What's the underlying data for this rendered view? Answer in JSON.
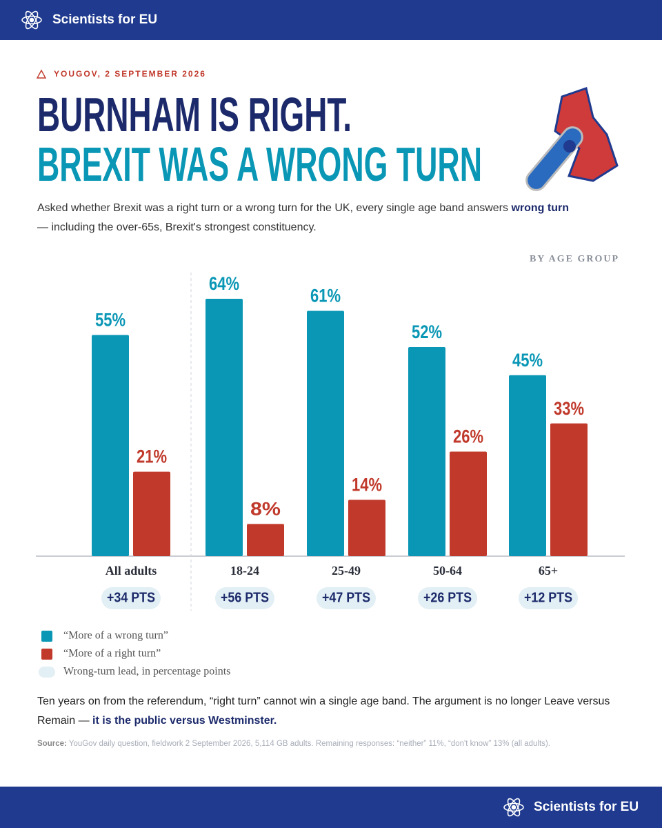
{
  "header": {
    "brand": "Scientists for EU"
  },
  "kicker": "YOUGOV, 2 SEPTEMBER 2026",
  "title_line1": "BURNHAM IS RIGHT.",
  "title_line2": "BREXIT WAS A WRONG TURN",
  "subtitle": {
    "text_before": "Asked whether Brexit was a right turn or a wrong turn for the UK, every single age band answers ",
    "emphasis": "wrong turn",
    "text_after": "— including the over-65s, Brexit's strongest constituency."
  },
  "chart_data": {
    "type": "bar",
    "label": "BY AGE GROUP",
    "categories": [
      "All adults",
      "18-24",
      "25-49",
      "50-64",
      "65+"
    ],
    "series": [
      {
        "name": "“More of a wrong turn”",
        "color": "#0a97b5",
        "values": [
          55,
          64,
          61,
          52,
          45
        ],
        "value_labels": [
          "55%",
          "64%",
          "61%",
          "52%",
          "45%"
        ]
      },
      {
        "name": "“More of a right turn”",
        "color": "#c0392b",
        "values": [
          21,
          8,
          14,
          26,
          33
        ],
        "value_labels": [
          "21%",
          "8%",
          "14%",
          "26%",
          "33%"
        ]
      },
      {
        "name": "Wrong-turn lead, in percentage points",
        "color": "#e2eff5",
        "values": [
          34,
          56,
          47,
          26,
          12
        ],
        "value_labels": [
          "+34 PTS",
          "+56 PTS",
          "+47 PTS",
          "+26 PTS",
          "+12 PTS"
        ]
      }
    ]
  },
  "conclusion": {
    "text": "Ten years on from the referendum, “right turn” cannot win a single age band. The argument is no longer Leave versus Remain — ",
    "emphasis": "it is the public versus Westminster."
  },
  "source": {
    "label": "Source:",
    "text": "YouGov daily question, fieldwork 2 September 2026, 5,114 GB adults. Remaining responses: “neither” 11%, “don't know” 13% (all adults)."
  },
  "footer": {
    "brand": "Scientists for EU"
  }
}
